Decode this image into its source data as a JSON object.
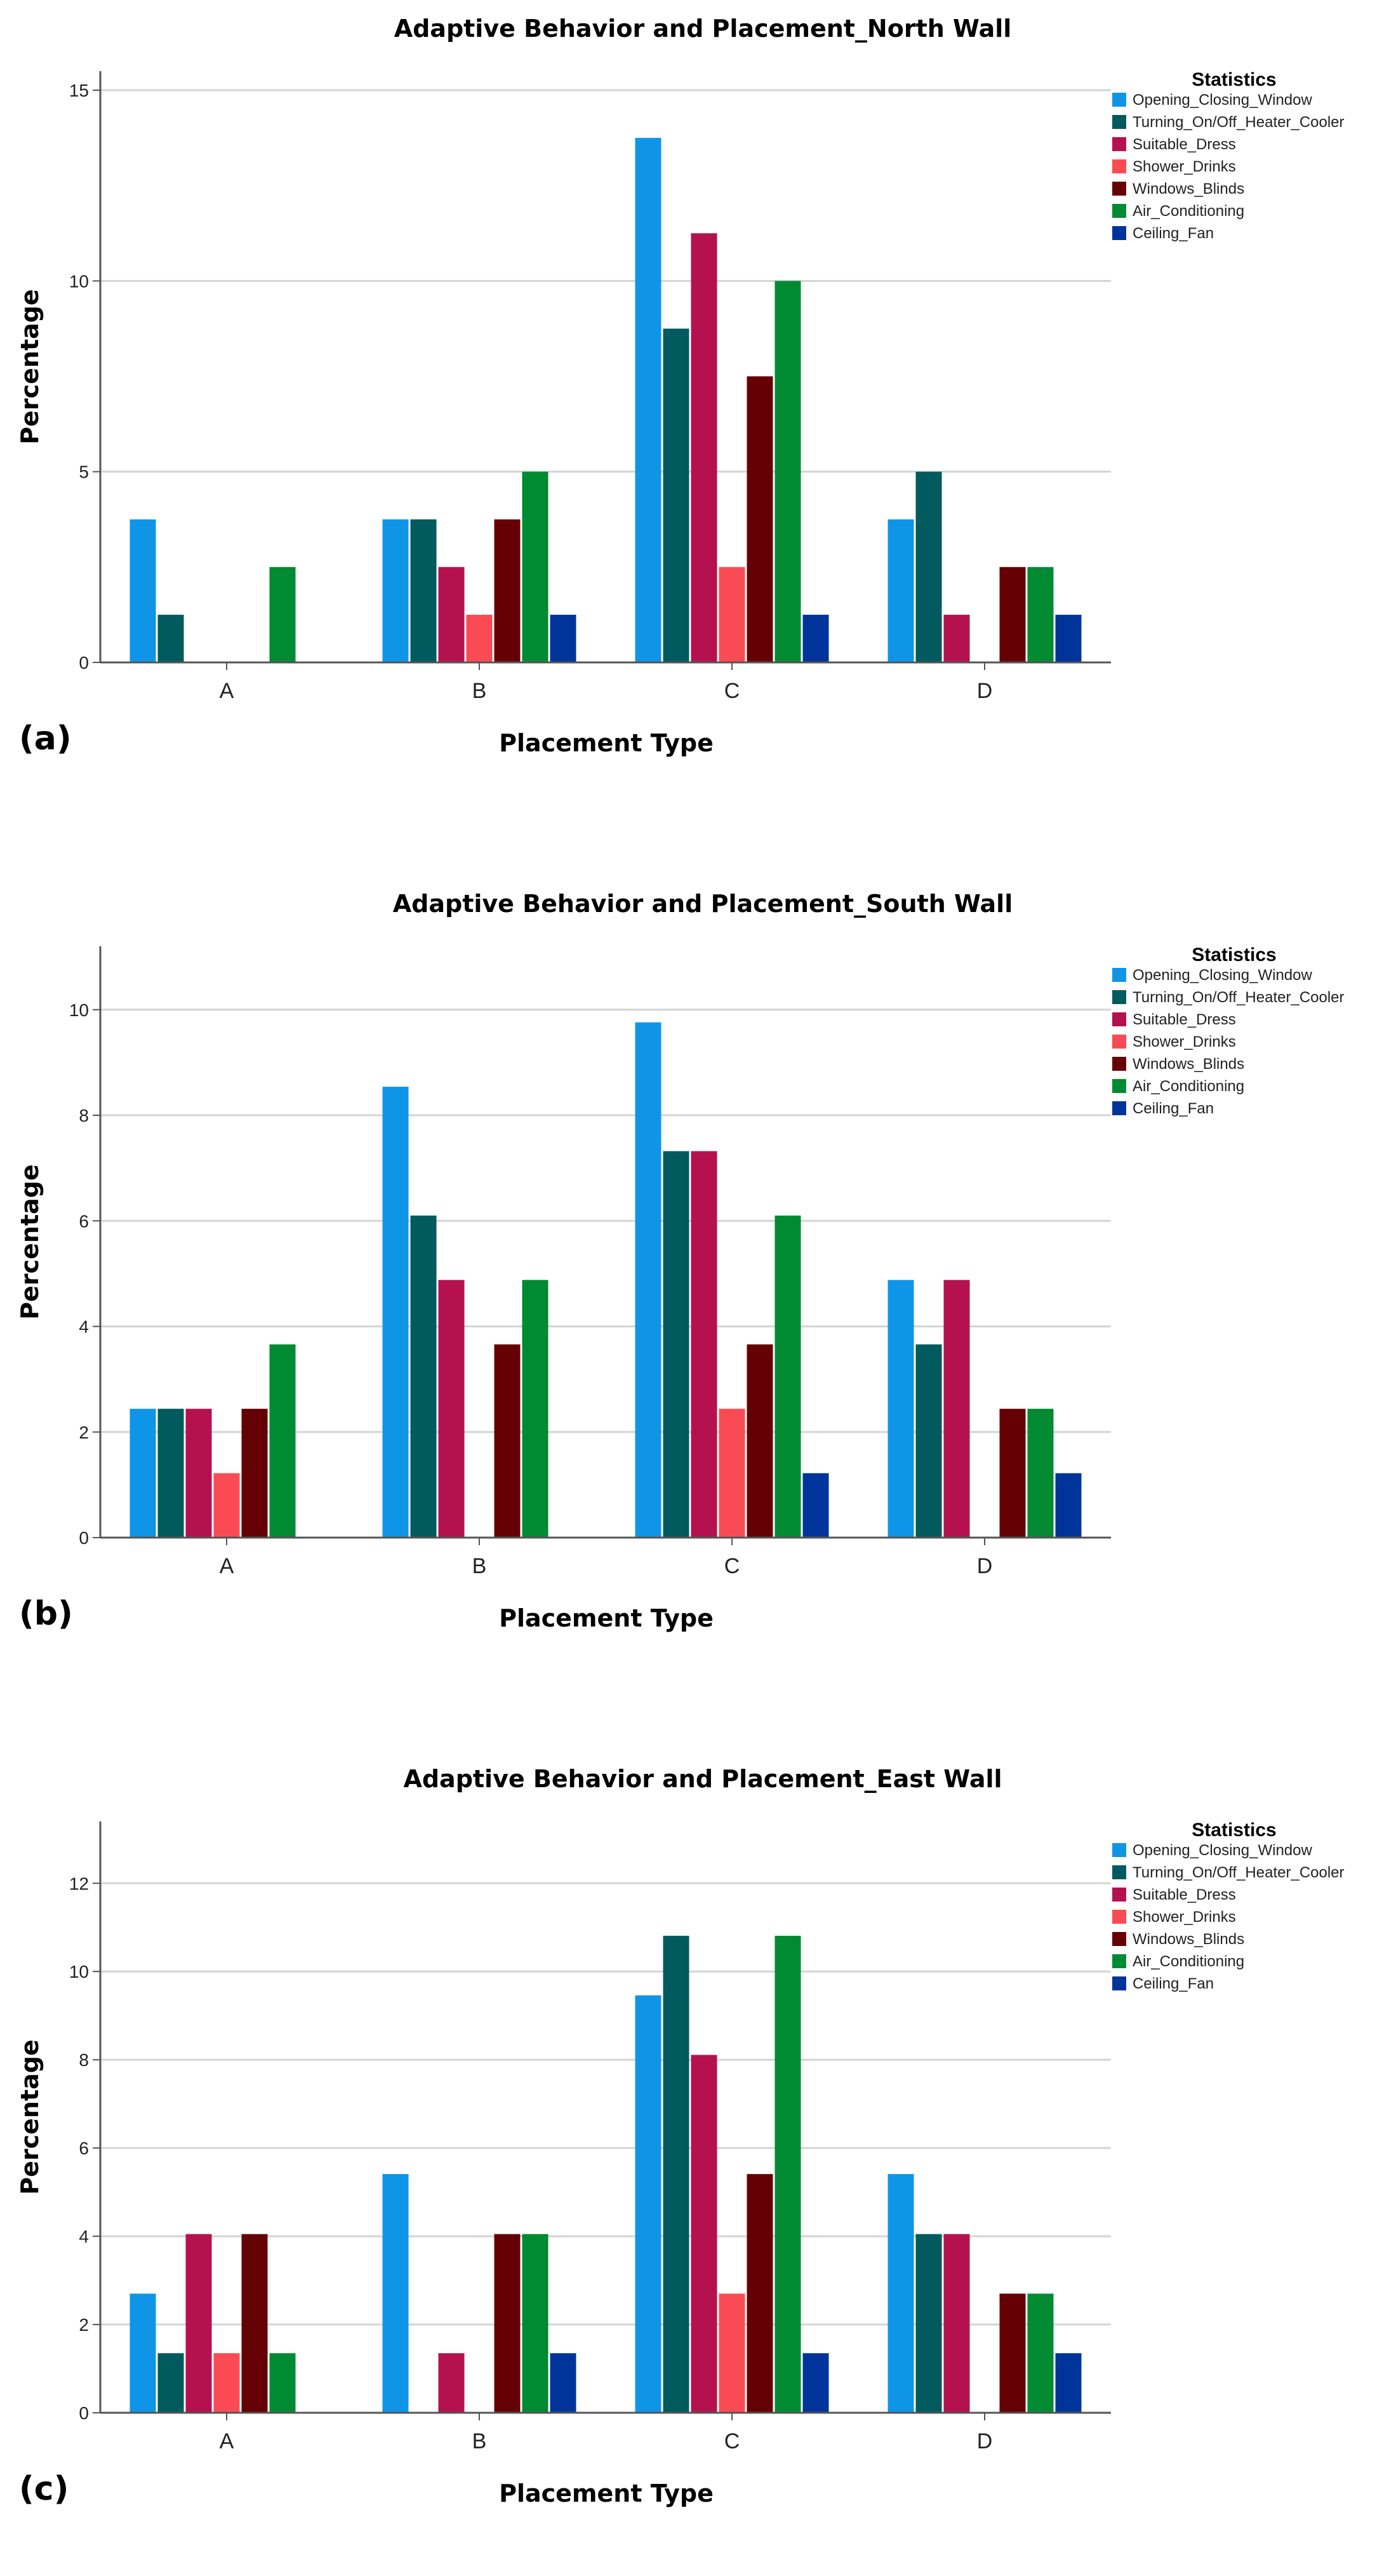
{
  "chart_data": [
    {
      "type": "bar",
      "panel_label": "(a)",
      "title": "Adaptive Behavior and Placement_North Wall",
      "xlabel": "Placement Type",
      "ylabel": "Percentage",
      "ylim": [
        0,
        15.5
      ],
      "yticks": [
        "0",
        "5",
        "10",
        "15"
      ],
      "legend_title": "Statistics",
      "categories": [
        "A",
        "B",
        "C",
        "D"
      ],
      "series": [
        {
          "name": "Opening_Closing_Window",
          "color": "#0f95e8",
          "values": [
            3.75,
            3.75,
            13.75,
            3.75
          ]
        },
        {
          "name": "Turning_On/Off_Heater_Cooler",
          "color": "#005a5e",
          "values": [
            1.25,
            3.75,
            8.75,
            5.0
          ]
        },
        {
          "name": "Suitable_Dress",
          "color": "#b5114f",
          "values": [
            0,
            2.5,
            11.25,
            1.25
          ]
        },
        {
          "name": "Shower_Drinks",
          "color": "#fa4b55",
          "values": [
            0,
            1.25,
            2.5,
            0
          ]
        },
        {
          "name": "Windows_Blinds",
          "color": "#650005",
          "values": [
            0,
            3.75,
            7.5,
            2.5
          ]
        },
        {
          "name": "Air_Conditioning",
          "color": "#008a32",
          "values": [
            2.5,
            5.0,
            10.0,
            2.5
          ]
        },
        {
          "name": "Ceiling_Fan",
          "color": "#00349b",
          "values": [
            0,
            1.25,
            1.25,
            1.25
          ]
        }
      ]
    },
    {
      "type": "bar",
      "panel_label": "(b)",
      "title": "Adaptive Behavior and Placement_South Wall",
      "xlabel": "Placement Type",
      "ylabel": "Percentage",
      "ylim": [
        0,
        11.2
      ],
      "yticks": [
        "0",
        "2",
        "4",
        "6",
        "8",
        "10"
      ],
      "legend_title": "Statistics",
      "categories": [
        "A",
        "B",
        "C",
        "D"
      ],
      "series": [
        {
          "name": "Opening_Closing_Window",
          "color": "#0f95e8",
          "values": [
            2.44,
            8.54,
            9.76,
            4.88
          ]
        },
        {
          "name": "Turning_On/Off_Heater_Cooler",
          "color": "#005a5e",
          "values": [
            2.44,
            6.1,
            7.32,
            3.66
          ]
        },
        {
          "name": "Suitable_Dress",
          "color": "#b5114f",
          "values": [
            2.44,
            4.88,
            7.32,
            4.88
          ]
        },
        {
          "name": "Shower_Drinks",
          "color": "#fa4b55",
          "values": [
            1.22,
            0,
            2.44,
            0
          ]
        },
        {
          "name": "Windows_Blinds",
          "color": "#650005",
          "values": [
            2.44,
            3.66,
            3.66,
            2.44
          ]
        },
        {
          "name": "Air_Conditioning",
          "color": "#008a32",
          "values": [
            3.66,
            4.88,
            6.1,
            2.44
          ]
        },
        {
          "name": "Ceiling_Fan",
          "color": "#00349b",
          "values": [
            0,
            0,
            1.22,
            1.22
          ]
        }
      ]
    },
    {
      "type": "bar",
      "panel_label": "(c)",
      "title": "Adaptive Behavior and Placement_East Wall",
      "xlabel": "Placement Type",
      "ylabel": "Percentage",
      "ylim": [
        0,
        13.4
      ],
      "yticks": [
        "0",
        "2",
        "4",
        "6",
        "8",
        "10",
        "12"
      ],
      "legend_title": "Statistics",
      "categories": [
        "A",
        "B",
        "C",
        "D"
      ],
      "series": [
        {
          "name": "Opening_Closing_Window",
          "color": "#0f95e8",
          "values": [
            2.7,
            5.41,
            9.46,
            5.41
          ]
        },
        {
          "name": "Turning_On/Off_Heater_Cooler",
          "color": "#005a5e",
          "values": [
            1.35,
            0,
            10.81,
            4.05
          ]
        },
        {
          "name": "Suitable_Dress",
          "color": "#b5114f",
          "values": [
            4.05,
            1.35,
            8.11,
            4.05
          ]
        },
        {
          "name": "Shower_Drinks",
          "color": "#fa4b55",
          "values": [
            1.35,
            0,
            2.7,
            0
          ]
        },
        {
          "name": "Windows_Blinds",
          "color": "#650005",
          "values": [
            4.05,
            4.05,
            5.41,
            2.7
          ]
        },
        {
          "name": "Air_Conditioning",
          "color": "#008a32",
          "values": [
            1.35,
            4.05,
            10.81,
            2.7
          ]
        },
        {
          "name": "Ceiling_Fan",
          "color": "#00349b",
          "values": [
            0,
            1.35,
            1.35,
            1.35
          ]
        }
      ]
    }
  ]
}
